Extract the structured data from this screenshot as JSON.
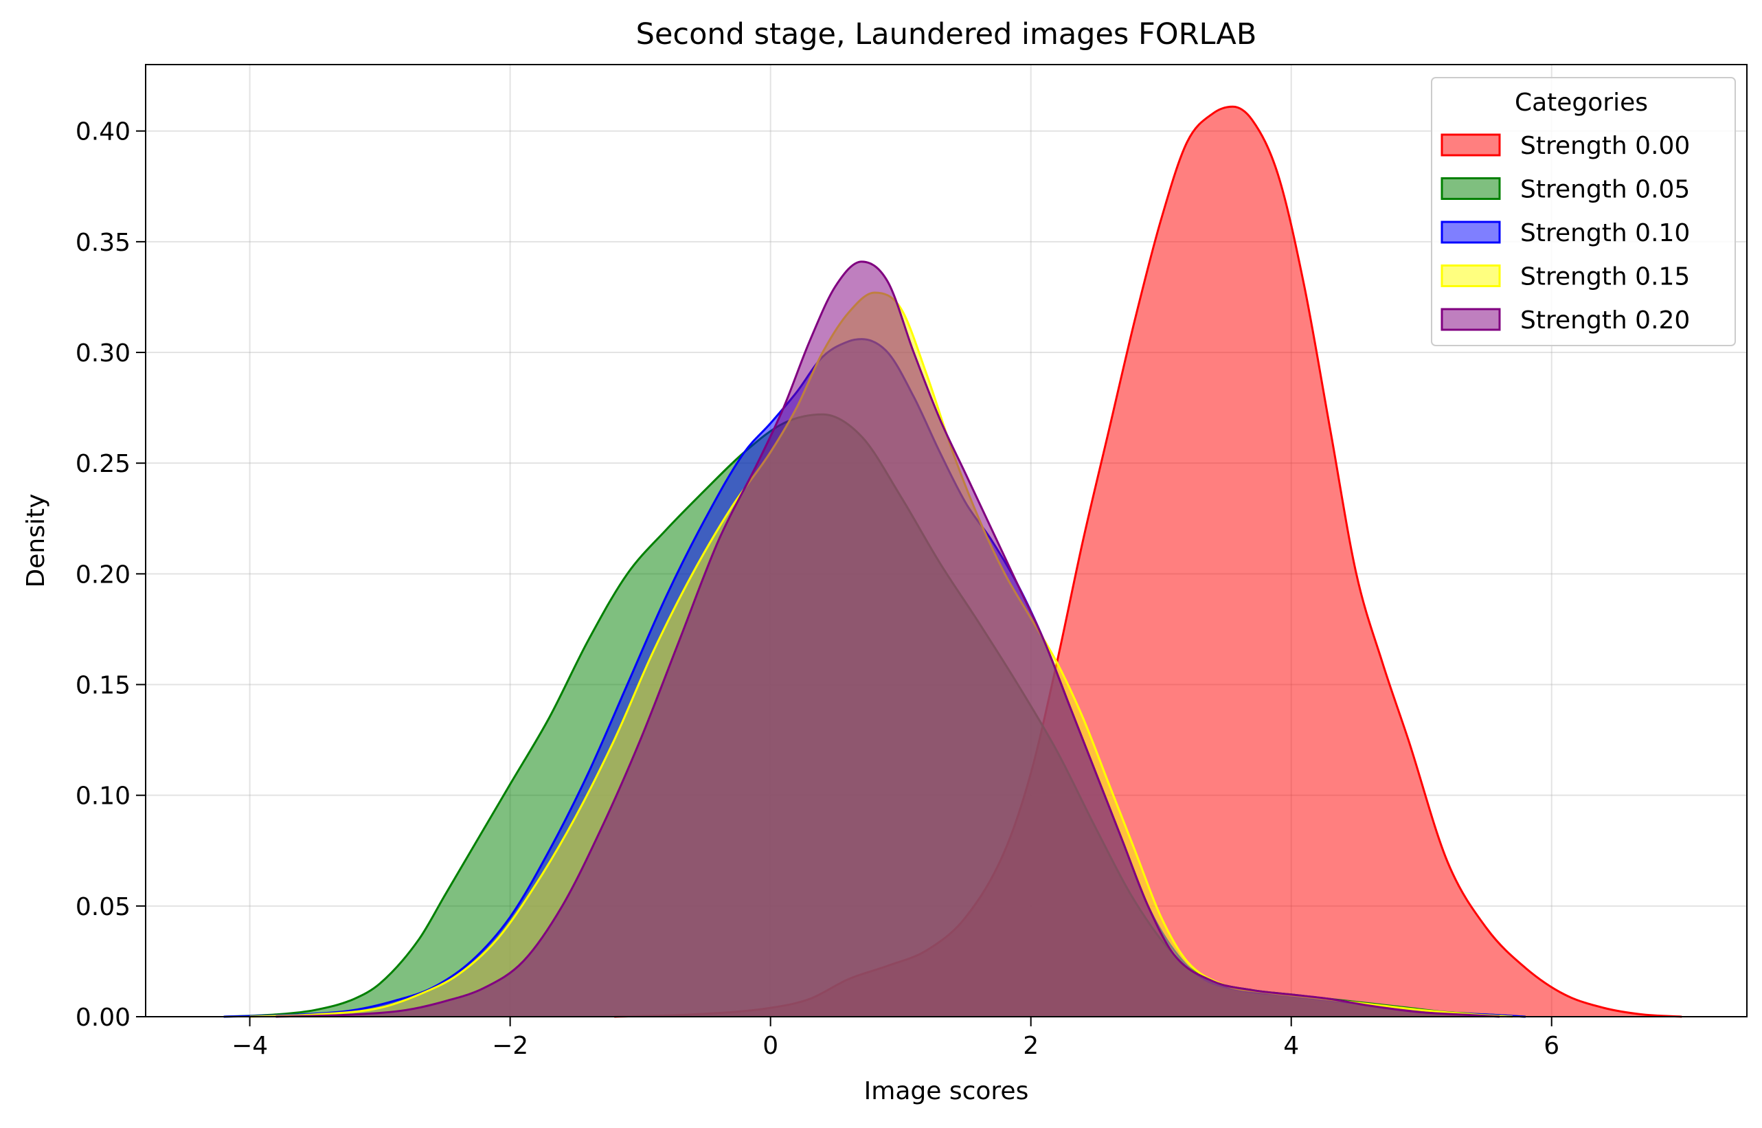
{
  "chart_data": {
    "type": "area",
    "title": "Second stage, Laundered images FORLAB",
    "xlabel": "Image scores",
    "ylabel": "Density",
    "xlim": [
      -4.8,
      7.5
    ],
    "ylim": [
      0,
      0.43
    ],
    "xticks": [
      -4,
      -2,
      0,
      2,
      4,
      6
    ],
    "xtick_labels": [
      "−4",
      "−2",
      "0",
      "2",
      "4",
      "6"
    ],
    "yticks": [
      0,
      0.05,
      0.1,
      0.15,
      0.2,
      0.25,
      0.3,
      0.35,
      0.4
    ],
    "ytick_labels": [
      "0.00",
      "0.05",
      "0.10",
      "0.15",
      "0.20",
      "0.25",
      "0.30",
      "0.35",
      "0.40"
    ],
    "grid": true,
    "legend": {
      "title": "Categories",
      "placement": "top-right"
    },
    "fill_opacity": 0.5,
    "series": [
      {
        "name": "Strength 0.00",
        "color": "#ff0000",
        "x": [
          -1.2,
          -0.6,
          0,
          0.3,
          0.6,
          0.9,
          1.2,
          1.5,
          1.8,
          2.0,
          2.2,
          2.4,
          2.6,
          2.8,
          3.0,
          3.2,
          3.4,
          3.55,
          3.7,
          3.9,
          4.1,
          4.3,
          4.5,
          4.7,
          4.9,
          5.2,
          5.5,
          5.8,
          6.1,
          6.4,
          6.7,
          7.0
        ],
        "y": [
          0,
          0.001,
          0.004,
          0.008,
          0.017,
          0.023,
          0.03,
          0.045,
          0.075,
          0.11,
          0.16,
          0.215,
          0.265,
          0.315,
          0.36,
          0.395,
          0.408,
          0.411,
          0.405,
          0.38,
          0.33,
          0.265,
          0.2,
          0.16,
          0.125,
          0.07,
          0.04,
          0.022,
          0.01,
          0.004,
          0.001,
          0
        ]
      },
      {
        "name": "Strength 0.05",
        "color": "#008000",
        "x": [
          -4.2,
          -3.8,
          -3.5,
          -3.2,
          -3.0,
          -2.7,
          -2.5,
          -2.2,
          -2.0,
          -1.7,
          -1.4,
          -1.1,
          -0.8,
          -0.5,
          -0.2,
          0.1,
          0.4,
          0.7,
          1.0,
          1.3,
          1.6,
          1.9,
          2.2,
          2.5,
          2.8,
          3.1,
          3.4,
          3.7,
          4.0,
          4.3,
          4.6,
          4.9,
          5.2,
          5.5,
          5.8
        ],
        "y": [
          0,
          0.001,
          0.003,
          0.008,
          0.015,
          0.035,
          0.055,
          0.085,
          0.105,
          0.135,
          0.17,
          0.2,
          0.22,
          0.238,
          0.255,
          0.268,
          0.272,
          0.262,
          0.235,
          0.205,
          0.178,
          0.15,
          0.12,
          0.085,
          0.052,
          0.028,
          0.016,
          0.012,
          0.01,
          0.008,
          0.006,
          0.004,
          0.002,
          0.001,
          0
        ]
      },
      {
        "name": "Strength 0.10",
        "color": "#0000ff",
        "x": [
          -4.2,
          -3.6,
          -3.2,
          -2.9,
          -2.6,
          -2.3,
          -2.0,
          -1.7,
          -1.4,
          -1.1,
          -0.8,
          -0.5,
          -0.2,
          0,
          0.2,
          0.4,
          0.6,
          0.7,
          0.9,
          1.1,
          1.3,
          1.5,
          1.7,
          1.9,
          2.1,
          2.3,
          2.5,
          2.7,
          2.9,
          3.1,
          3.3,
          3.6,
          3.9,
          4.2,
          4.5,
          4.8,
          5.1,
          5.5,
          5.8
        ],
        "y": [
          0,
          0.001,
          0.003,
          0.007,
          0.013,
          0.025,
          0.045,
          0.075,
          0.11,
          0.15,
          0.19,
          0.225,
          0.255,
          0.268,
          0.282,
          0.298,
          0.305,
          0.306,
          0.3,
          0.28,
          0.255,
          0.232,
          0.215,
          0.195,
          0.17,
          0.14,
          0.11,
          0.08,
          0.05,
          0.03,
          0.018,
          0.012,
          0.01,
          0.008,
          0.006,
          0.004,
          0.002,
          0.001,
          0
        ]
      },
      {
        "name": "Strength 0.15",
        "color": "#ffff00",
        "x": [
          -4.0,
          -3.5,
          -3.0,
          -2.7,
          -2.4,
          -2.1,
          -1.8,
          -1.5,
          -1.2,
          -0.9,
          -0.6,
          -0.3,
          0,
          0.2,
          0.4,
          0.6,
          0.8,
          1.0,
          1.2,
          1.4,
          1.6,
          1.8,
          2.0,
          2.2,
          2.4,
          2.6,
          2.8,
          3.0,
          3.2,
          3.5,
          3.8,
          4.1,
          4.4,
          4.7,
          5.0,
          5.4,
          5.7
        ],
        "y": [
          0,
          0.001,
          0.004,
          0.01,
          0.019,
          0.035,
          0.06,
          0.09,
          0.125,
          0.165,
          0.2,
          0.23,
          0.255,
          0.275,
          0.3,
          0.318,
          0.327,
          0.32,
          0.29,
          0.255,
          0.225,
          0.2,
          0.18,
          0.16,
          0.135,
          0.105,
          0.075,
          0.045,
          0.025,
          0.014,
          0.011,
          0.009,
          0.007,
          0.005,
          0.003,
          0.001,
          0
        ]
      },
      {
        "name": "Strength 0.20",
        "color": "#800080",
        "x": [
          -3.8,
          -3.2,
          -2.8,
          -2.5,
          -2.2,
          -1.9,
          -1.6,
          -1.3,
          -1.0,
          -0.7,
          -0.4,
          -0.1,
          0.1,
          0.3,
          0.5,
          0.7,
          0.9,
          1.1,
          1.3,
          1.5,
          1.7,
          1.9,
          2.1,
          2.3,
          2.5,
          2.7,
          2.9,
          3.1,
          3.4,
          3.7,
          4.0,
          4.3,
          4.6,
          5.0,
          5.3,
          5.6
        ],
        "y": [
          0,
          0.001,
          0.003,
          0.007,
          0.013,
          0.025,
          0.05,
          0.085,
          0.125,
          0.17,
          0.215,
          0.25,
          0.275,
          0.305,
          0.33,
          0.341,
          0.332,
          0.3,
          0.27,
          0.245,
          0.22,
          0.195,
          0.17,
          0.14,
          0.11,
          0.08,
          0.05,
          0.028,
          0.016,
          0.012,
          0.01,
          0.008,
          0.005,
          0.002,
          0.001,
          0
        ]
      }
    ]
  }
}
